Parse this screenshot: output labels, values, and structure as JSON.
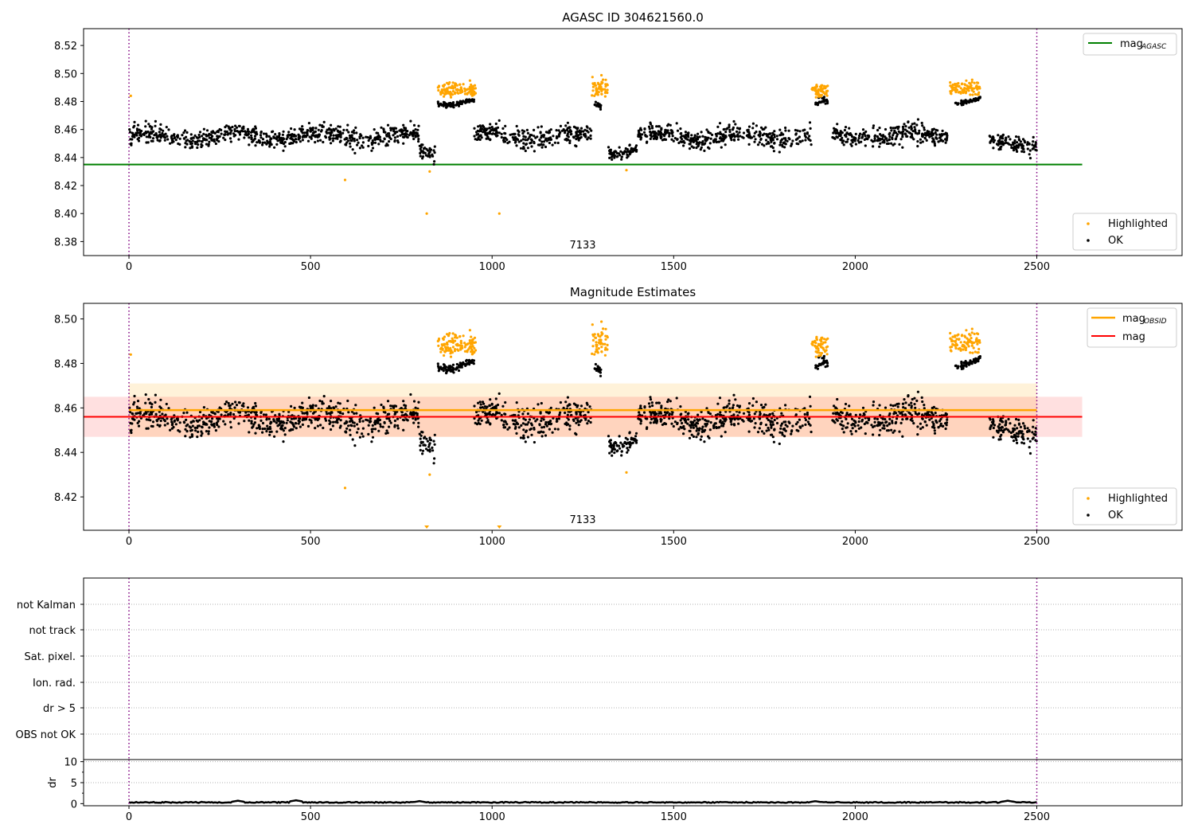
{
  "chart_data": [
    {
      "type": "scatter",
      "title": "AGASC ID 304621560.0",
      "xlim": [
        -125,
        2900
      ],
      "ylim": [
        8.37,
        8.532
      ],
      "x_ticks": [
        0,
        500,
        1000,
        1500,
        2000,
        2500
      ],
      "y_ticks": [
        "8.38",
        "8.40",
        "8.42",
        "8.44",
        "8.46",
        "8.48",
        "8.50",
        "8.52"
      ],
      "mag_agasc": 8.435,
      "obsid_boundaries": [
        0,
        2500
      ],
      "obsid_annotation": {
        "text": "7133",
        "x": 1250
      },
      "legend_lines": [
        {
          "name": "mag",
          "subscript": "AGASC",
          "color": "#008000"
        }
      ],
      "legend_points": [
        {
          "name": "Highlighted",
          "color": "#ffa500"
        },
        {
          "name": "OK",
          "color": "#000000"
        }
      ],
      "ok_segments": [
        {
          "x": [
            0,
            800
          ],
          "base": 8.455,
          "spread": 0.009
        },
        {
          "x": [
            800,
            845
          ],
          "base": 8.444,
          "spread": 0.007
        },
        {
          "x": [
            850,
            950
          ],
          "base": 8.48,
          "spread": 0.003
        },
        {
          "x": [
            950,
            1275
          ],
          "base": 8.455,
          "spread": 0.009
        },
        {
          "x": [
            1280,
            1300
          ],
          "base": 8.478,
          "spread": 0.003
        },
        {
          "x": [
            1320,
            1400
          ],
          "base": 8.445,
          "spread": 0.006
        },
        {
          "x": [
            1400,
            1880
          ],
          "base": 8.455,
          "spread": 0.009
        },
        {
          "x": [
            1890,
            1925
          ],
          "base": 8.478,
          "spread": 0.003
        },
        {
          "x": [
            1935,
            2255
          ],
          "base": 8.456,
          "spread": 0.009
        },
        {
          "x": [
            2270,
            2345
          ],
          "base": 8.481,
          "spread": 0.002
        },
        {
          "x": [
            2370,
            2500
          ],
          "base": 8.45,
          "spread": 0.008
        }
      ],
      "highlighted_clusters": [
        {
          "x": [
            850,
            955
          ],
          "base": 8.488,
          "spread": 0.007
        },
        {
          "x": [
            1275,
            1320
          ],
          "base": 8.49,
          "spread": 0.009
        },
        {
          "x": [
            1880,
            1925
          ],
          "base": 8.488,
          "spread": 0.007
        },
        {
          "x": [
            2260,
            2345
          ],
          "base": 8.489,
          "spread": 0.007
        }
      ],
      "highlighted_outliers": [
        {
          "x": 5,
          "y": 8.484
        },
        {
          "x": 595,
          "y": 8.424
        },
        {
          "x": 820,
          "y": 8.4
        },
        {
          "x": 828,
          "y": 8.43
        },
        {
          "x": 1020,
          "y": 8.4
        },
        {
          "x": 1370,
          "y": 8.431
        }
      ]
    },
    {
      "type": "scatter",
      "title": "Magnitude Estimates",
      "xlim": [
        -125,
        2900
      ],
      "ylim": [
        8.405,
        8.507
      ],
      "x_ticks": [
        0,
        500,
        1000,
        1500,
        2000,
        2500
      ],
      "y_ticks": [
        "8.42",
        "8.44",
        "8.46",
        "8.48",
        "8.50"
      ],
      "mag_obsid": 8.459,
      "mag_obsid_band": [
        8.447,
        8.471
      ],
      "mag": 8.456,
      "mag_band": [
        8.447,
        8.465
      ],
      "obsid_boundaries": [
        0,
        2500
      ],
      "obsid_annotation": {
        "text": "7133",
        "x": 1250
      },
      "legend_lines": [
        {
          "name": "mag",
          "subscript": "OBSID",
          "color": "#ffa500"
        },
        {
          "name": "mag",
          "subscript": "",
          "color": "#ff0000"
        }
      ],
      "legend_points": [
        {
          "name": "Highlighted",
          "color": "#ffa500"
        },
        {
          "name": "OK",
          "color": "#000000"
        }
      ],
      "off_scale_markers": [
        820,
        1020
      ]
    },
    {
      "type": "scatter",
      "title": "",
      "xlim": [
        -125,
        2900
      ],
      "category_labels": [
        "not Kalman",
        "not track",
        "Sat. pixel.",
        "Ion. rad.",
        "dr > 5",
        "OBS not OK"
      ],
      "flagged_points": []
    },
    {
      "type": "line",
      "title": "",
      "ylabel": "dr",
      "xlim": [
        -125,
        2900
      ],
      "ylim": [
        -0.5,
        10.5
      ],
      "x_ticks": [
        0,
        500,
        1000,
        1500,
        2000,
        2500
      ],
      "y_ticks": [
        "0",
        "5",
        "10"
      ],
      "dr_base": 0.3,
      "dr_bumps": [
        {
          "x": 300,
          "y": 0.7
        },
        {
          "x": 460,
          "y": 0.8
        },
        {
          "x": 800,
          "y": 0.6
        },
        {
          "x": 1890,
          "y": 0.6
        },
        {
          "x": 2420,
          "y": 0.7
        }
      ]
    }
  ]
}
